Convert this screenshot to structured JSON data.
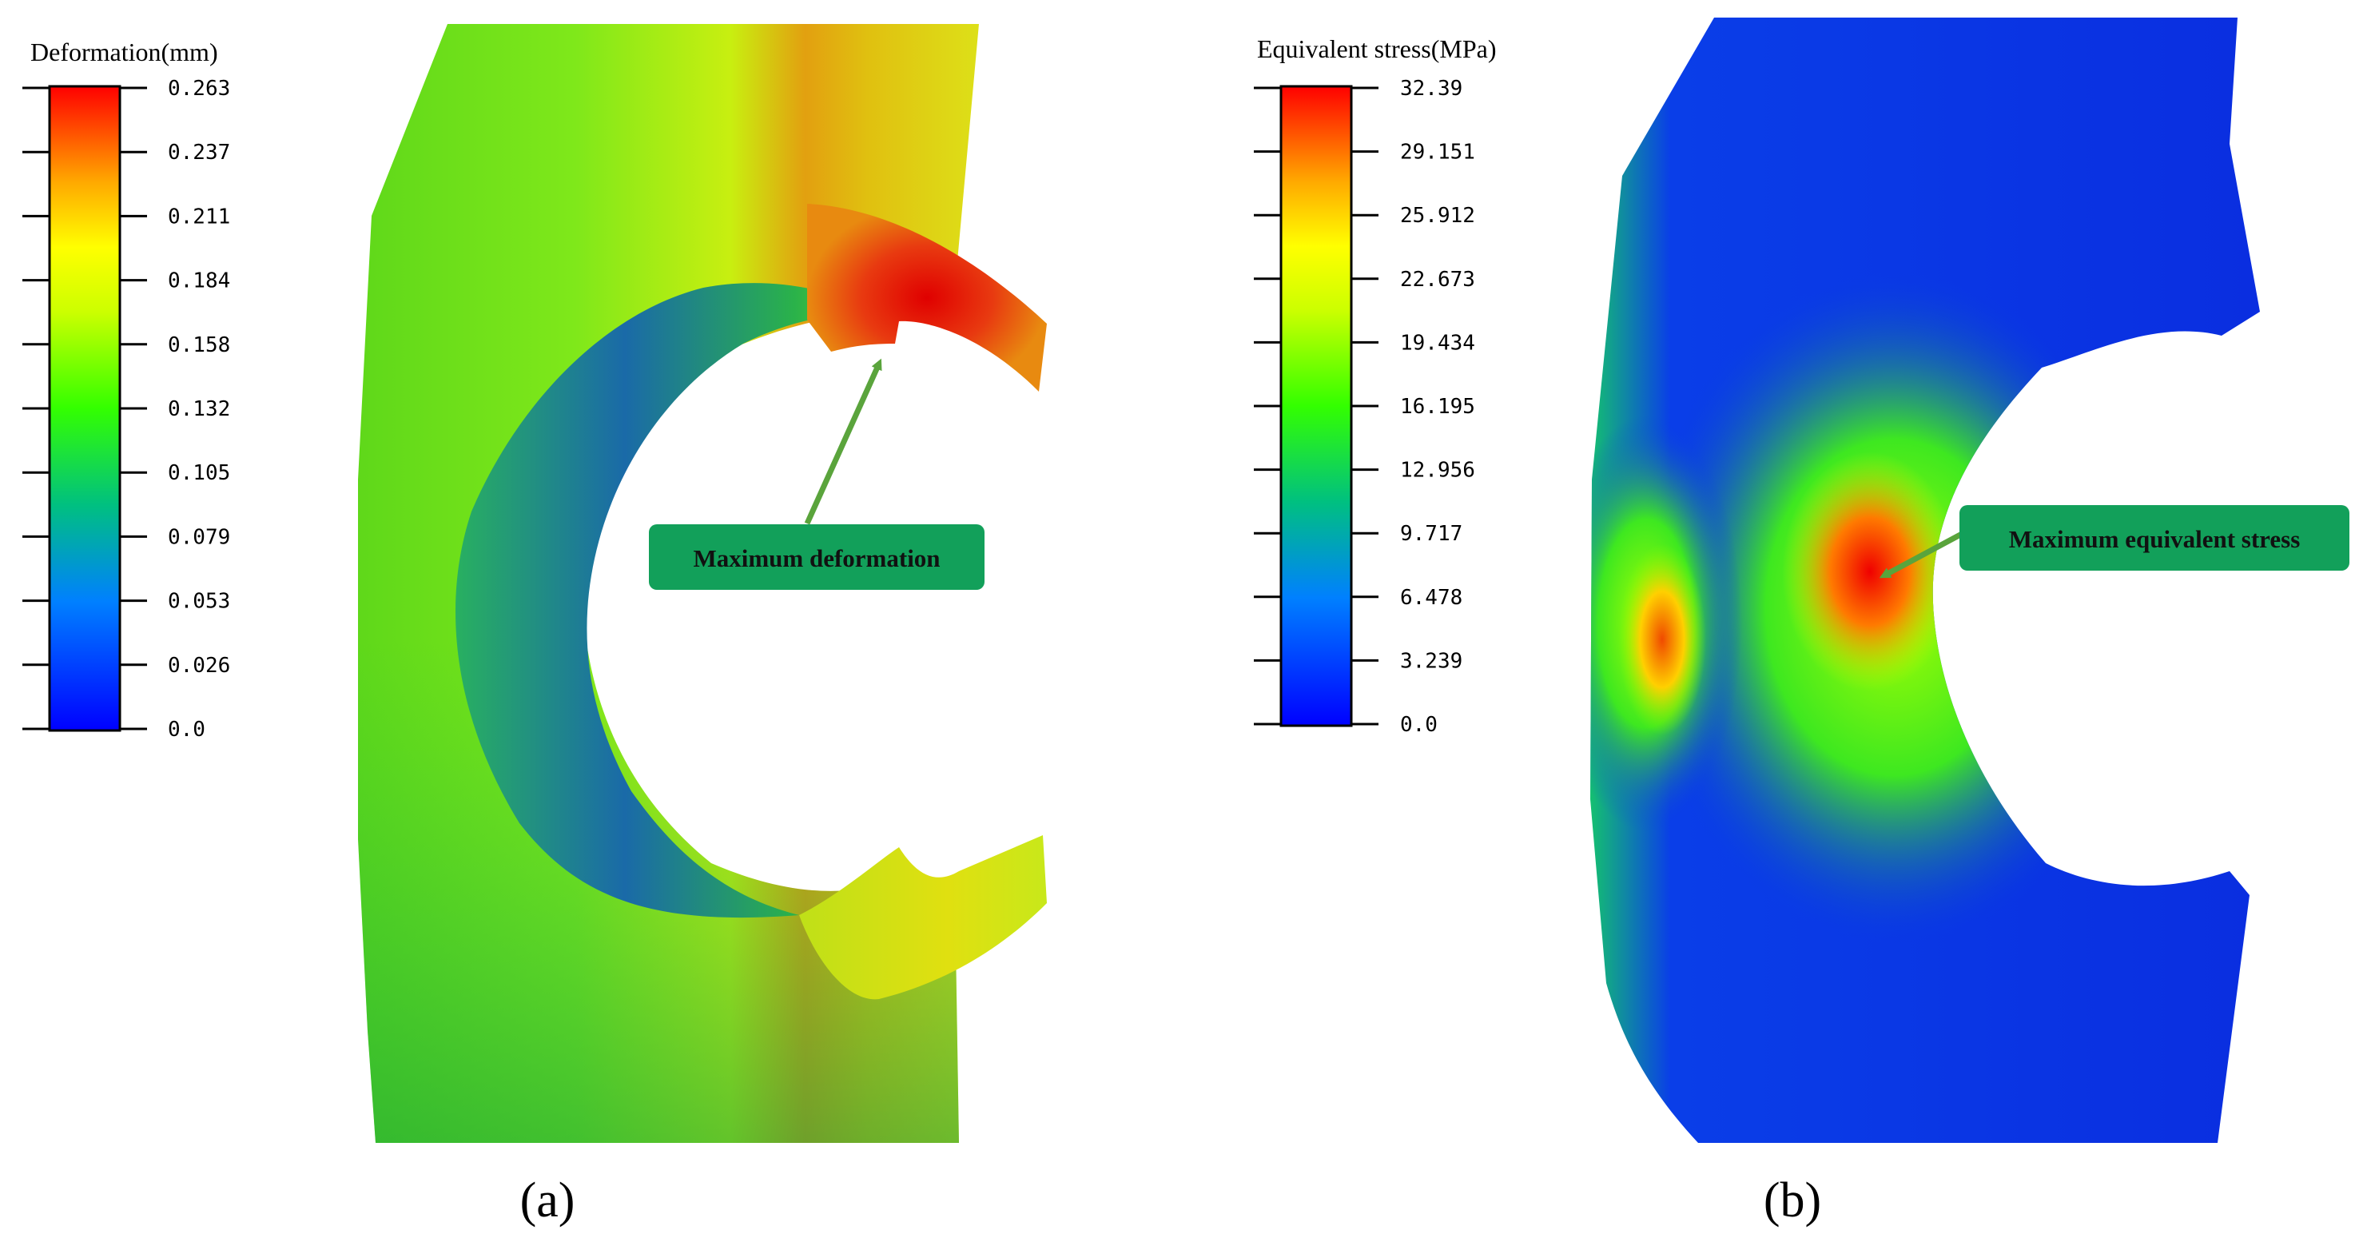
{
  "panel_a": {
    "legend": {
      "title": "Deformation(mm)",
      "ticks": [
        "0.263",
        "0.237",
        "0.211",
        "0.184",
        "0.158",
        "0.132",
        "0.105",
        "0.079",
        "0.053",
        "0.026",
        "0.0"
      ]
    },
    "annotation": "Maximum deformation",
    "caption": "(a)"
  },
  "panel_b": {
    "legend": {
      "title": "Equivalent stress(MPa)",
      "ticks": [
        "32.39",
        "29.151",
        "25.912",
        "22.673",
        "19.434",
        "16.195",
        "12.956",
        "9.717",
        "6.478",
        "3.239",
        "0.0"
      ]
    },
    "annotation": "Maximum equivalent stress",
    "caption": "(b)"
  },
  "colors": {
    "colormap": [
      "#0000ff",
      "#00a0a0",
      "#00ff00",
      "#ffff00",
      "#ff9900",
      "#ff0000"
    ],
    "annotation_box": "#12a05a",
    "arrow": "#5aa43c"
  }
}
